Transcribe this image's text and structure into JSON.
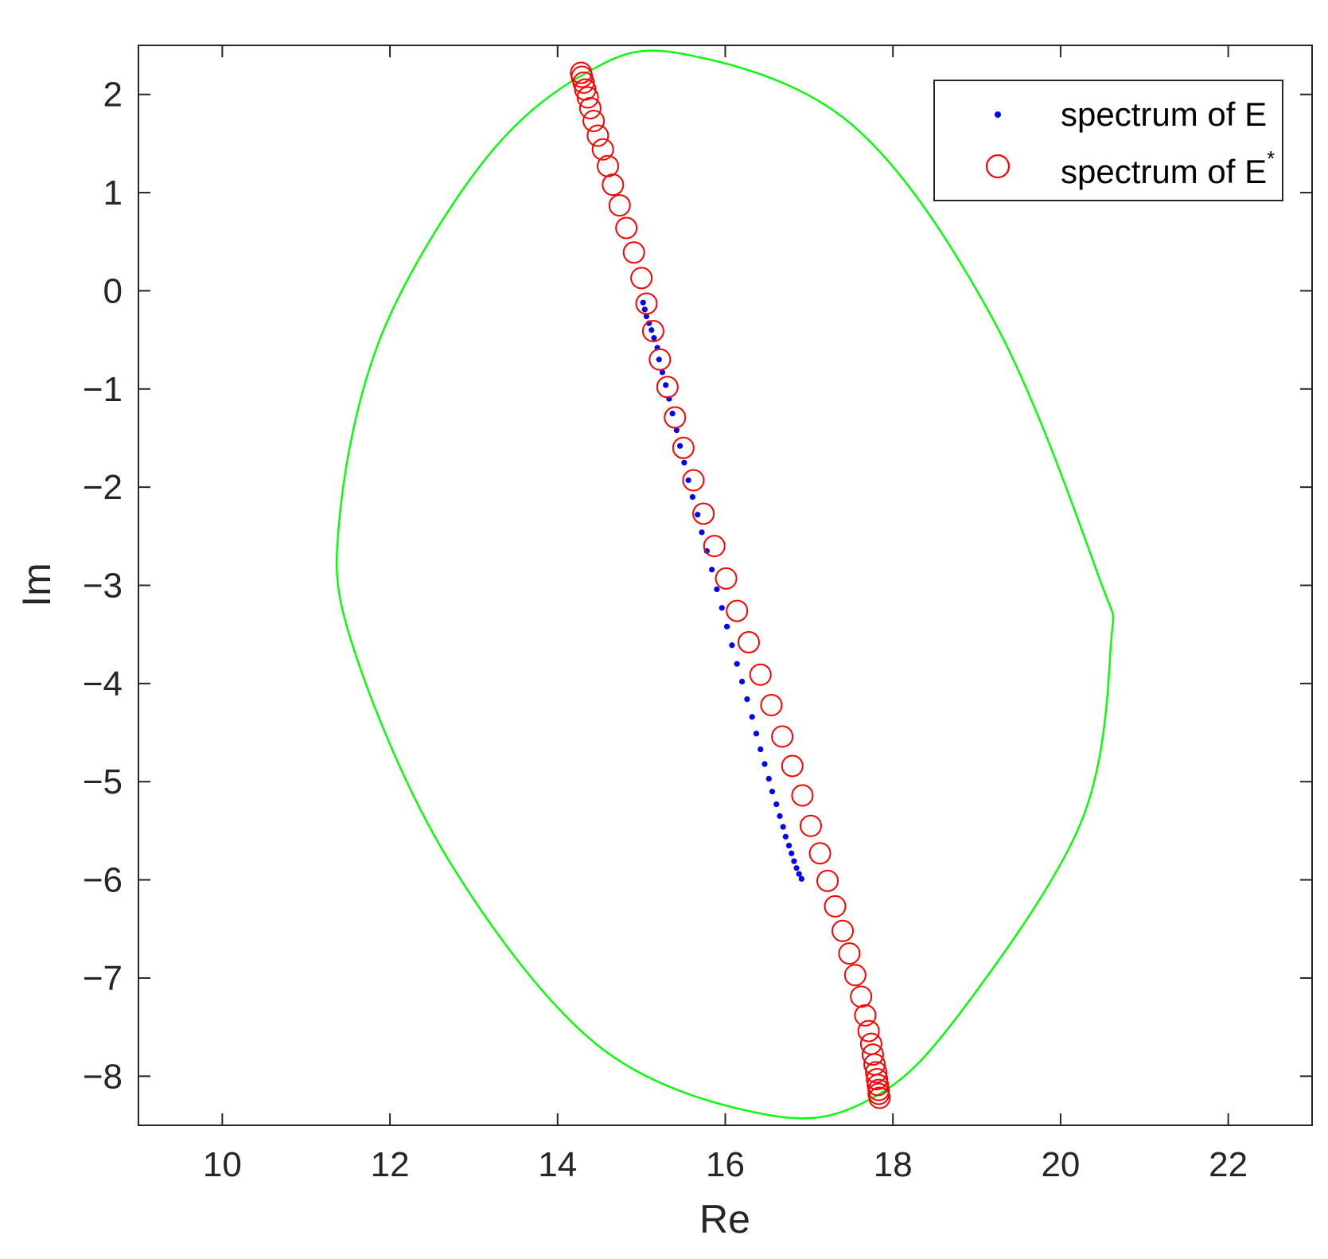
{
  "chart_data": {
    "type": "scatter",
    "title": "",
    "xlabel": "Re",
    "ylabel": "Im",
    "xlim": [
      9,
      23
    ],
    "ylim": [
      -8.5,
      2.5
    ],
    "x_ticks": [
      10,
      12,
      14,
      16,
      18,
      20,
      22
    ],
    "y_ticks": [
      2,
      1,
      0,
      -1,
      -2,
      -3,
      -4,
      -5,
      -6,
      -7,
      -8
    ],
    "x_tick_labels": [
      "10",
      "12",
      "14",
      "16",
      "18",
      "20",
      "22"
    ],
    "y_tick_labels": [
      "2",
      "1",
      "0",
      "−1",
      "−2",
      "−3",
      "−4",
      "−5",
      "−6",
      "−7",
      "−8"
    ],
    "grid": false,
    "legend_position": "top-right",
    "legend": [
      {
        "label": "spectrum of E",
        "marker": "dot",
        "color": "#0000ff"
      },
      {
        "label": "spectrum of E",
        "superscript": "*",
        "marker": "circle",
        "color": "#ff0000"
      }
    ],
    "series": [
      {
        "name": "spectrum of E",
        "marker": "dot",
        "color": "#0000ff",
        "points": [
          [
            15.02,
            -0.12
          ],
          [
            15.04,
            -0.19
          ],
          [
            15.06,
            -0.26
          ],
          [
            15.09,
            -0.33
          ],
          [
            15.12,
            -0.4
          ],
          [
            15.15,
            -0.48
          ],
          [
            15.19,
            -0.58
          ],
          [
            15.21,
            -0.7
          ],
          [
            15.25,
            -0.83
          ],
          [
            15.29,
            -0.96
          ],
          [
            15.33,
            -1.1
          ],
          [
            15.37,
            -1.25
          ],
          [
            15.42,
            -1.42
          ],
          [
            15.46,
            -1.58
          ],
          [
            15.51,
            -1.75
          ],
          [
            15.56,
            -1.93
          ],
          [
            15.61,
            -2.1
          ],
          [
            15.67,
            -2.28
          ],
          [
            15.72,
            -2.46
          ],
          [
            15.78,
            -2.65
          ],
          [
            15.84,
            -2.84
          ],
          [
            15.9,
            -3.04
          ],
          [
            15.96,
            -3.23
          ],
          [
            16.02,
            -3.42
          ],
          [
            16.08,
            -3.61
          ],
          [
            16.14,
            -3.8
          ],
          [
            16.2,
            -3.98
          ],
          [
            16.26,
            -4.16
          ],
          [
            16.32,
            -4.34
          ],
          [
            16.37,
            -4.51
          ],
          [
            16.42,
            -4.67
          ],
          [
            16.47,
            -4.82
          ],
          [
            16.52,
            -4.97
          ],
          [
            16.56,
            -5.1
          ],
          [
            16.61,
            -5.23
          ],
          [
            16.65,
            -5.35
          ],
          [
            16.69,
            -5.46
          ],
          [
            16.72,
            -5.56
          ],
          [
            16.76,
            -5.65
          ],
          [
            16.79,
            -5.73
          ],
          [
            16.82,
            -5.81
          ],
          [
            16.85,
            -5.88
          ],
          [
            16.88,
            -5.94
          ],
          [
            16.91,
            -5.99
          ]
        ]
      },
      {
        "name": "spectrum of E*",
        "marker": "circle",
        "color": "#ff0000",
        "points": [
          [
            14.28,
            2.22
          ],
          [
            14.29,
            2.18
          ],
          [
            14.31,
            2.12
          ],
          [
            14.33,
            2.05
          ],
          [
            14.36,
            1.97
          ],
          [
            14.39,
            1.86
          ],
          [
            14.43,
            1.73
          ],
          [
            14.48,
            1.58
          ],
          [
            14.54,
            1.44
          ],
          [
            14.6,
            1.27
          ],
          [
            14.66,
            1.08
          ],
          [
            14.74,
            0.87
          ],
          [
            14.82,
            0.64
          ],
          [
            14.91,
            0.39
          ],
          [
            15.0,
            0.13
          ],
          [
            15.06,
            -0.13
          ],
          [
            15.14,
            -0.41
          ],
          [
            15.22,
            -0.7
          ],
          [
            15.31,
            -0.98
          ],
          [
            15.4,
            -1.29
          ],
          [
            15.5,
            -1.6
          ],
          [
            15.62,
            -1.93
          ],
          [
            15.74,
            -2.27
          ],
          [
            15.87,
            -2.6
          ],
          [
            16.01,
            -2.93
          ],
          [
            16.14,
            -3.26
          ],
          [
            16.28,
            -3.58
          ],
          [
            16.42,
            -3.91
          ],
          [
            16.55,
            -4.22
          ],
          [
            16.68,
            -4.54
          ],
          [
            16.8,
            -4.84
          ],
          [
            16.92,
            -5.14
          ],
          [
            17.02,
            -5.45
          ],
          [
            17.13,
            -5.73
          ],
          [
            17.22,
            -6.01
          ],
          [
            17.31,
            -6.27
          ],
          [
            17.4,
            -6.52
          ],
          [
            17.48,
            -6.75
          ],
          [
            17.55,
            -6.97
          ],
          [
            17.62,
            -7.19
          ],
          [
            17.67,
            -7.38
          ],
          [
            17.71,
            -7.54
          ],
          [
            17.74,
            -7.67
          ],
          [
            17.76,
            -7.78
          ],
          [
            17.78,
            -7.88
          ],
          [
            17.8,
            -7.96
          ],
          [
            17.81,
            -8.03
          ],
          [
            17.82,
            -8.09
          ],
          [
            17.83,
            -8.14
          ],
          [
            17.83,
            -8.18
          ],
          [
            17.84,
            -8.22
          ]
        ]
      }
    ],
    "ellipse": {
      "color": "#00ff00",
      "points": [
        [
          15.45,
          2.42
        ],
        [
          17.5,
          1.7
        ],
        [
          19.2,
          -0.3
        ],
        [
          20.45,
          -2.9
        ],
        [
          20.6,
          -3.6
        ],
        [
          20.25,
          -5.4
        ],
        [
          18.85,
          -7.3
        ],
        [
          17.8,
          -8.2
        ],
        [
          16.55,
          -8.4
        ],
        [
          14.5,
          -7.7
        ],
        [
          12.7,
          -5.8
        ],
        [
          11.55,
          -3.6
        ],
        [
          11.4,
          -2.3
        ],
        [
          11.9,
          -0.45
        ],
        [
          13.1,
          1.3
        ],
        [
          14.3,
          2.2
        ]
      ]
    }
  }
}
